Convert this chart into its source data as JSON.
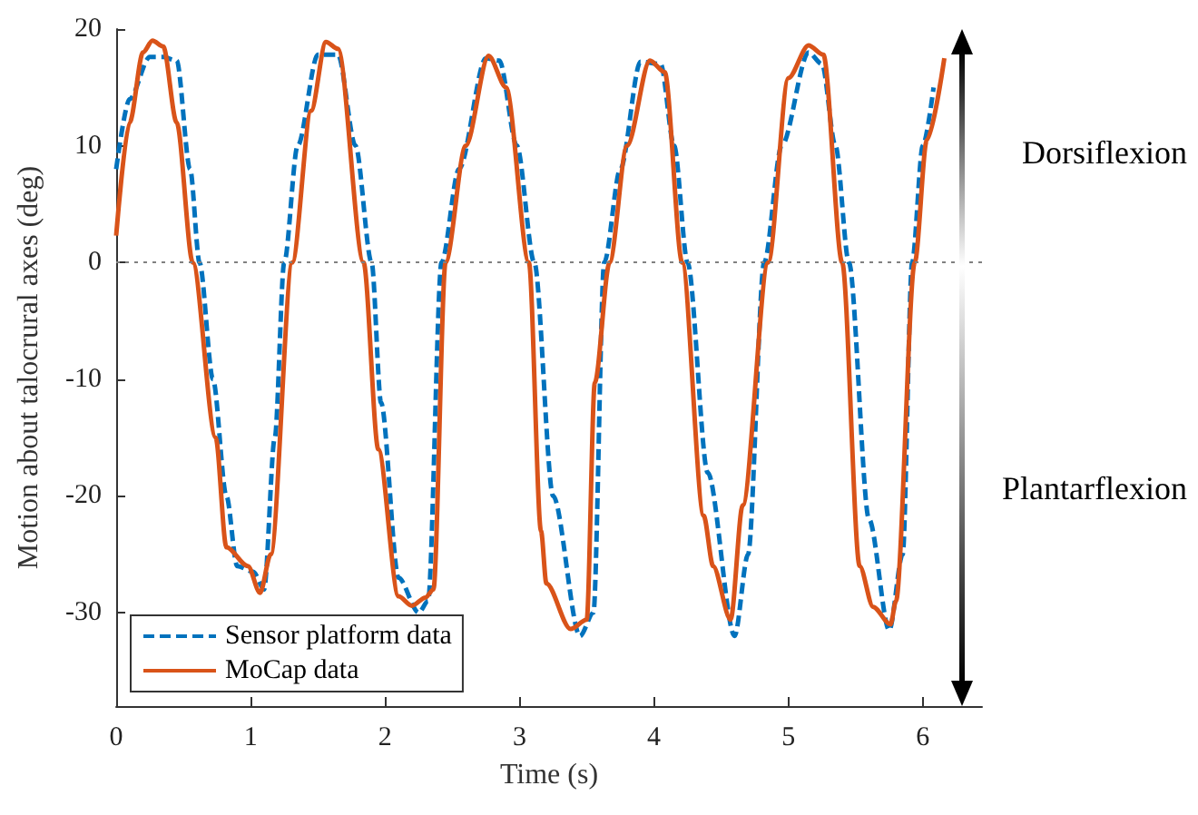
{
  "chart_data": {
    "type": "line",
    "xlabel": "Time (s)",
    "ylabel": "Motion about talocrural axes (deg)",
    "xlim": [
      0,
      6.44
    ],
    "xticks": [
      0,
      1,
      2,
      3,
      4,
      5,
      6
    ],
    "ylim": [
      -38,
      20
    ],
    "yticks": [
      -30,
      -20,
      -10,
      0,
      10,
      20
    ],
    "grid": false,
    "legend": "bottom left",
    "marker": "none",
    "annotations": [
      "Dorsiflexion",
      "Plantarflexion"
    ],
    "ref_lines": [
      {
        "axis": "y",
        "value": 0,
        "label": null,
        "color": "#808080",
        "line_style": "dotted"
      }
    ],
    "series": [
      {
        "name": "Sensor platform data",
        "color": "#0072bd",
        "line_style": "dashed",
        "x": [
          0,
          0.1,
          0.25,
          0.35,
          0.45,
          0.55,
          0.62,
          0.72,
          0.82,
          0.9,
          1.02,
          1.1,
          1.18,
          1.25,
          1.35,
          1.5,
          1.65,
          1.78,
          1.9,
          1.97,
          2.1,
          2.25,
          2.32,
          2.42,
          2.55,
          2.75,
          2.85,
          2.98,
          3.11,
          3.25,
          3.45,
          3.55,
          3.63,
          3.75,
          3.9,
          4.05,
          4.15,
          4.25,
          4.4,
          4.6,
          4.7,
          4.82,
          4.95,
          5.15,
          5.25,
          5.35,
          5.45,
          5.6,
          5.75,
          5.85,
          5.92,
          6.0,
          6.08
        ],
        "values": [
          8,
          14,
          17.6,
          17.6,
          17.3,
          8,
          0,
          -10,
          -20,
          -26,
          -26.5,
          -28,
          -15,
          0,
          10,
          17.8,
          17.8,
          10,
          0,
          -12,
          -27,
          -30,
          -29,
          0,
          8,
          17.5,
          17.3,
          10,
          0,
          -20,
          -32,
          -30,
          0,
          8,
          17.2,
          17,
          10,
          0,
          -18,
          -32,
          -25,
          0,
          10,
          18,
          17,
          10,
          0,
          -22,
          -31.5,
          -25,
          0,
          10,
          15
        ]
      },
      {
        "name": "MoCap data",
        "color": "#d95319",
        "line_style": "solid",
        "x": [
          0,
          0.1,
          0.2,
          0.27,
          0.35,
          0.45,
          0.57,
          0.74,
          0.82,
          0.98,
          1.07,
          1.15,
          1.31,
          1.45,
          1.56,
          1.65,
          1.84,
          1.95,
          2.1,
          2.2,
          2.3,
          2.36,
          2.45,
          2.6,
          2.77,
          2.9,
          3.07,
          3.16,
          3.2,
          3.38,
          3.5,
          3.56,
          3.67,
          3.8,
          3.97,
          4.08,
          4.21,
          4.37,
          4.44,
          4.57,
          4.66,
          4.85,
          5.0,
          5.15,
          5.26,
          5.4,
          5.53,
          5.63,
          5.76,
          5.8,
          5.94,
          6.03,
          6.16
        ],
        "values": [
          2.3,
          12,
          18,
          19,
          18.5,
          12,
          0,
          -15,
          -24.4,
          -26,
          -28.3,
          -25,
          0,
          13,
          18.9,
          18.3,
          0,
          -16,
          -28.6,
          -29.4,
          -28.7,
          -28,
          0,
          10,
          17.7,
          15,
          0,
          -23,
          -27.5,
          -31.4,
          -30.6,
          -10.3,
          0,
          10,
          17.3,
          16.3,
          0,
          -21.7,
          -26,
          -30.6,
          -20.8,
          0,
          15.8,
          18.6,
          17.8,
          0,
          -26,
          -29.5,
          -31,
          -29,
          0,
          10.5,
          17.5
        ]
      }
    ]
  }
}
